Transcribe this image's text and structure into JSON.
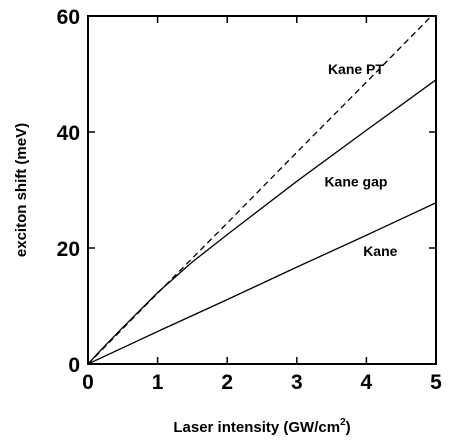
{
  "chart_data": {
    "type": "line",
    "title": "",
    "xlabel": "Laser intensity (GW/cm",
    "xlabel_sup": "2",
    "xlabel_suffix": ")",
    "ylabel": "exciton shift (meV)",
    "xlim": [
      0,
      5
    ],
    "ylim": [
      0,
      60
    ],
    "xticks": [
      0,
      1,
      2,
      3,
      4,
      5
    ],
    "yticks": [
      0,
      20,
      40,
      60
    ],
    "grid": false,
    "legend": "none",
    "series": [
      {
        "name": "Kane PT",
        "style": "dashed",
        "color": "#000000",
        "x": [
          0,
          1,
          2,
          3,
          4,
          5
        ],
        "y": [
          0,
          12.2,
          24.3,
          36.5,
          48.6,
          60.8
        ]
      },
      {
        "name": "Kane gap",
        "style": "solid",
        "color": "#000000",
        "x": [
          0,
          0.2,
          0.5,
          1,
          1.5,
          2,
          3,
          4,
          5
        ],
        "y": [
          0,
          2.6,
          6.3,
          12.3,
          17.6,
          22.3,
          31.5,
          40.3,
          49
        ]
      },
      {
        "name": "Kane",
        "style": "solid",
        "color": "#000000",
        "x": [
          0,
          1,
          2,
          3,
          4,
          5
        ],
        "y": [
          0,
          5.6,
          11.1,
          16.7,
          22.2,
          27.8
        ]
      }
    ]
  }
}
